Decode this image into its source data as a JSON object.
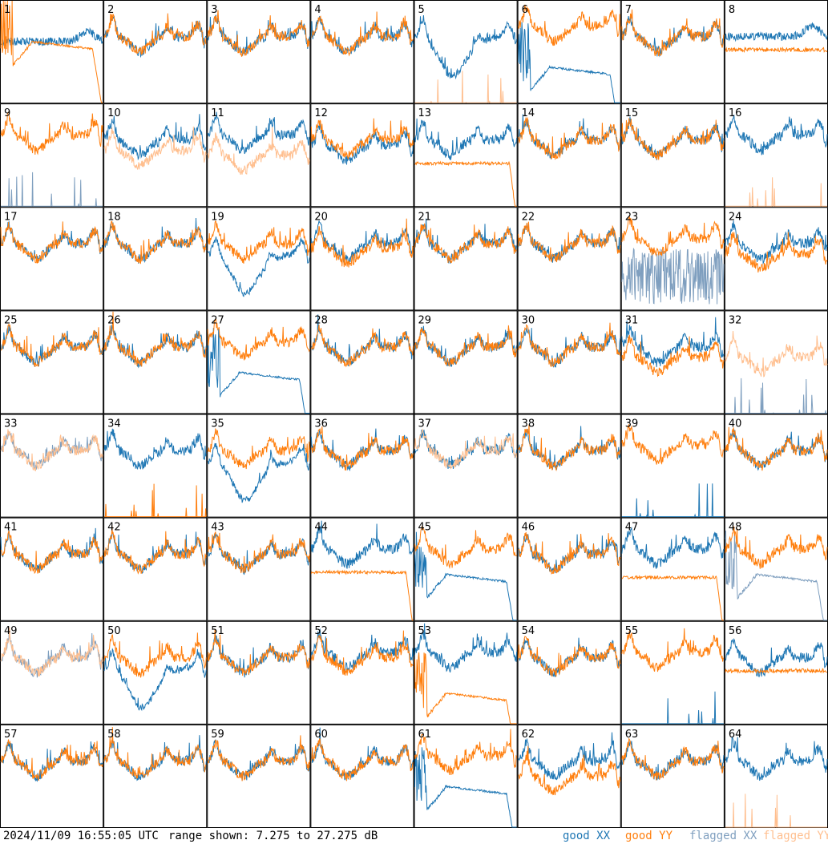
{
  "chart_data": {
    "type": "line",
    "layout": "8x8 grid of small-multiple spectra",
    "units": "dB",
    "ylim": [
      7.275,
      27.275
    ],
    "grid": false,
    "panels": [
      {
        "label": "1",
        "xx": "good",
        "yy": "good",
        "xx_level": 0.55,
        "yy_level": 0.6,
        "xx_profile": "flat-high",
        "yy_profile": "dip-then-drop"
      },
      {
        "label": "2",
        "xx": "good",
        "yy": "good",
        "xx_level": 0.55,
        "yy_level": 0.55,
        "xx_profile": "ripple",
        "yy_profile": "ripple"
      },
      {
        "label": "3",
        "xx": "good",
        "yy": "good",
        "xx_level": 0.55,
        "yy_level": 0.55,
        "xx_profile": "ripple",
        "yy_profile": "ripple"
      },
      {
        "label": "4",
        "xx": "good",
        "yy": "good",
        "xx_level": 0.55,
        "yy_level": 0.55,
        "xx_profile": "ripple",
        "yy_profile": "ripple"
      },
      {
        "label": "5",
        "xx": "good",
        "yy": "flagged-low",
        "xx_level": 0.55,
        "yy_level": 0.0,
        "xx_profile": "dip",
        "yy_profile": "spikes"
      },
      {
        "label": "6",
        "xx": "good",
        "yy": "good",
        "xx_level": 0.35,
        "yy_level": 0.65,
        "xx_profile": "dip-then-drop",
        "yy_profile": "ripple"
      },
      {
        "label": "7",
        "xx": "good",
        "yy": "good",
        "xx_level": 0.55,
        "yy_level": 0.55,
        "xx_profile": "ripple",
        "yy_profile": "ripple"
      },
      {
        "label": "8",
        "xx": "good",
        "yy": "good",
        "xx_level": 0.6,
        "yy_level": 0.5,
        "xx_profile": "flat-high",
        "yy_profile": "flat"
      },
      {
        "label": "9",
        "xx": "flagged-low",
        "yy": "good",
        "xx_level": 0.0,
        "yy_level": 0.6,
        "xx_profile": "spikes",
        "yy_profile": "ripple"
      },
      {
        "label": "10",
        "xx": "good",
        "yy": "flagged",
        "xx_level": 0.55,
        "yy_level": 0.45,
        "xx_profile": "ripple",
        "yy_profile": "ripple"
      },
      {
        "label": "11",
        "xx": "good",
        "yy": "flagged",
        "xx_level": 0.6,
        "yy_level": 0.4,
        "xx_profile": "ripple",
        "yy_profile": "ripple"
      },
      {
        "label": "12",
        "xx": "good",
        "yy": "good",
        "xx_level": 0.5,
        "yy_level": 0.55,
        "xx_profile": "ripple",
        "yy_profile": "ripple"
      },
      {
        "label": "13",
        "xx": "good",
        "yy": "good",
        "xx_level": 0.55,
        "yy_level": 0.45,
        "xx_profile": "ripple",
        "yy_profile": "flat-drop"
      },
      {
        "label": "14",
        "xx": "good",
        "yy": "good",
        "xx_level": 0.55,
        "yy_level": 0.55,
        "xx_profile": "ripple",
        "yy_profile": "ripple"
      },
      {
        "label": "15",
        "xx": "good",
        "yy": "good",
        "xx_level": 0.55,
        "yy_level": 0.55,
        "xx_profile": "ripple",
        "yy_profile": "ripple"
      },
      {
        "label": "16",
        "xx": "good",
        "yy": "flagged-low",
        "xx_level": 0.6,
        "yy_level": 0.0,
        "xx_profile": "ripple",
        "yy_profile": "spikes"
      },
      {
        "label": "17",
        "xx": "good",
        "yy": "good",
        "xx_level": 0.55,
        "yy_level": 0.55,
        "xx_profile": "ripple",
        "yy_profile": "ripple"
      },
      {
        "label": "18",
        "xx": "good",
        "yy": "good",
        "xx_level": 0.55,
        "yy_level": 0.55,
        "xx_profile": "ripple",
        "yy_profile": "ripple"
      },
      {
        "label": "19",
        "xx": "good",
        "yy": "good",
        "xx_level": 0.45,
        "yy_level": 0.55,
        "xx_profile": "dip",
        "yy_profile": "ripple"
      },
      {
        "label": "20",
        "xx": "good",
        "yy": "good",
        "xx_level": 0.55,
        "yy_level": 0.5,
        "xx_profile": "ripple",
        "yy_profile": "ripple"
      },
      {
        "label": "21",
        "xx": "good",
        "yy": "good",
        "xx_level": 0.55,
        "yy_level": 0.55,
        "xx_profile": "ripple",
        "yy_profile": "ripple"
      },
      {
        "label": "22",
        "xx": "good",
        "yy": "good",
        "xx_level": 0.55,
        "yy_level": 0.55,
        "xx_profile": "ripple",
        "yy_profile": "ripple"
      },
      {
        "label": "23",
        "xx": "flagged-noise",
        "yy": "good",
        "xx_level": 0.25,
        "yy_level": 0.6,
        "xx_profile": "noise",
        "yy_profile": "ripple"
      },
      {
        "label": "24",
        "xx": "good",
        "yy": "good",
        "xx_level": 0.55,
        "yy_level": 0.45,
        "xx_profile": "ripple",
        "yy_profile": "ripple"
      },
      {
        "label": "25",
        "xx": "good",
        "yy": "good",
        "xx_level": 0.55,
        "yy_level": 0.55,
        "xx_profile": "ripple",
        "yy_profile": "ripple"
      },
      {
        "label": "26",
        "xx": "good",
        "yy": "good",
        "xx_level": 0.55,
        "yy_level": 0.55,
        "xx_profile": "ripple",
        "yy_profile": "ripple"
      },
      {
        "label": "27",
        "xx": "good",
        "yy": "good",
        "xx_level": 0.4,
        "yy_level": 0.6,
        "xx_profile": "dip-then-drop",
        "yy_profile": "ripple"
      },
      {
        "label": "28",
        "xx": "good",
        "yy": "good",
        "xx_level": 0.55,
        "yy_level": 0.55,
        "xx_profile": "ripple",
        "yy_profile": "ripple"
      },
      {
        "label": "29",
        "xx": "good",
        "yy": "good",
        "xx_level": 0.55,
        "yy_level": 0.55,
        "xx_profile": "ripple",
        "yy_profile": "ripple"
      },
      {
        "label": "30",
        "xx": "good",
        "yy": "good",
        "xx_level": 0.55,
        "yy_level": 0.55,
        "xx_profile": "ripple",
        "yy_profile": "ripple"
      },
      {
        "label": "31",
        "xx": "good",
        "yy": "good",
        "xx_level": 0.55,
        "yy_level": 0.45,
        "xx_profile": "ripple",
        "yy_profile": "ripple"
      },
      {
        "label": "32",
        "xx": "flagged-low",
        "yy": "flagged",
        "xx_level": 0.0,
        "yy_level": 0.45,
        "xx_profile": "spikes",
        "yy_profile": "ripple"
      },
      {
        "label": "33",
        "xx": "flagged",
        "yy": "flagged",
        "xx_level": 0.55,
        "yy_level": 0.55,
        "xx_profile": "ripple",
        "yy_profile": "ripple"
      },
      {
        "label": "34",
        "xx": "good",
        "yy": "good-low",
        "xx_level": 0.55,
        "yy_level": 0.0,
        "xx_profile": "ripple",
        "yy_profile": "spikes"
      },
      {
        "label": "35",
        "xx": "good",
        "yy": "good",
        "xx_level": 0.45,
        "yy_level": 0.55,
        "xx_profile": "dip",
        "yy_profile": "ripple"
      },
      {
        "label": "36",
        "xx": "good",
        "yy": "good",
        "xx_level": 0.55,
        "yy_level": 0.55,
        "xx_profile": "ripple",
        "yy_profile": "ripple"
      },
      {
        "label": "37",
        "xx": "good",
        "yy": "flagged",
        "xx_level": 0.55,
        "yy_level": 0.55,
        "xx_profile": "ripple",
        "yy_profile": "ripple"
      },
      {
        "label": "38",
        "xx": "good",
        "yy": "good",
        "xx_level": 0.55,
        "yy_level": 0.55,
        "xx_profile": "ripple",
        "yy_profile": "ripple"
      },
      {
        "label": "39",
        "xx": "good-low",
        "yy": "good",
        "xx_level": 0.0,
        "yy_level": 0.6,
        "xx_profile": "spikes",
        "yy_profile": "ripple"
      },
      {
        "label": "40",
        "xx": "good",
        "yy": "good",
        "xx_level": 0.55,
        "yy_level": 0.55,
        "xx_profile": "ripple",
        "yy_profile": "ripple"
      },
      {
        "label": "41",
        "xx": "good",
        "yy": "good",
        "xx_level": 0.55,
        "yy_level": 0.55,
        "xx_profile": "ripple",
        "yy_profile": "ripple"
      },
      {
        "label": "42",
        "xx": "good",
        "yy": "good",
        "xx_level": 0.55,
        "yy_level": 0.55,
        "xx_profile": "ripple",
        "yy_profile": "ripple"
      },
      {
        "label": "43",
        "xx": "good",
        "yy": "good",
        "xx_level": 0.55,
        "yy_level": 0.55,
        "xx_profile": "ripple",
        "yy_profile": "ripple"
      },
      {
        "label": "44",
        "xx": "good",
        "yy": "good",
        "xx_level": 0.6,
        "yy_level": 0.5,
        "xx_profile": "ripple",
        "yy_profile": "flat-drop"
      },
      {
        "label": "45",
        "xx": "good",
        "yy": "good",
        "xx_level": 0.45,
        "yy_level": 0.6,
        "xx_profile": "dip-then-drop",
        "yy_profile": "ripple"
      },
      {
        "label": "46",
        "xx": "good",
        "yy": "good",
        "xx_level": 0.55,
        "yy_level": 0.55,
        "xx_profile": "ripple",
        "yy_profile": "ripple"
      },
      {
        "label": "47",
        "xx": "good",
        "yy": "good",
        "xx_level": 0.6,
        "yy_level": 0.45,
        "xx_profile": "ripple",
        "yy_profile": "flat-drop"
      },
      {
        "label": "48",
        "xx": "flagged",
        "yy": "good",
        "xx_level": 0.45,
        "yy_level": 0.6,
        "xx_profile": "dip-then-drop",
        "yy_profile": "ripple"
      },
      {
        "label": "49",
        "xx": "flagged",
        "yy": "flagged",
        "xx_level": 0.55,
        "yy_level": 0.55,
        "xx_profile": "ripple",
        "yy_profile": "ripple"
      },
      {
        "label": "50",
        "xx": "good",
        "yy": "good",
        "xx_level": 0.45,
        "yy_level": 0.55,
        "xx_profile": "dip",
        "yy_profile": "ripple"
      },
      {
        "label": "51",
        "xx": "good",
        "yy": "good",
        "xx_level": 0.55,
        "yy_level": 0.55,
        "xx_profile": "ripple",
        "yy_profile": "ripple"
      },
      {
        "label": "52",
        "xx": "good",
        "yy": "good",
        "xx_level": 0.6,
        "yy_level": 0.55,
        "xx_profile": "ripple",
        "yy_profile": "ripple"
      },
      {
        "label": "53",
        "xx": "good",
        "yy": "good",
        "xx_level": 0.6,
        "yy_level": 0.3,
        "xx_profile": "ripple",
        "yy_profile": "dip-then-drop"
      },
      {
        "label": "54",
        "xx": "good",
        "yy": "good",
        "xx_level": 0.55,
        "yy_level": 0.55,
        "xx_profile": "ripple",
        "yy_profile": "ripple"
      },
      {
        "label": "55",
        "xx": "good-low",
        "yy": "good",
        "xx_level": 0.0,
        "yy_level": 0.6,
        "xx_profile": "spikes",
        "yy_profile": "ripple"
      },
      {
        "label": "56",
        "xx": "good",
        "yy": "good",
        "xx_level": 0.55,
        "yy_level": 0.5,
        "xx_profile": "ripple",
        "yy_profile": "flat"
      },
      {
        "label": "57",
        "xx": "good",
        "yy": "good",
        "xx_level": 0.55,
        "yy_level": 0.55,
        "xx_profile": "ripple",
        "yy_profile": "ripple"
      },
      {
        "label": "58",
        "xx": "good",
        "yy": "good",
        "xx_level": 0.55,
        "yy_level": 0.55,
        "xx_profile": "ripple",
        "yy_profile": "ripple"
      },
      {
        "label": "59",
        "xx": "good",
        "yy": "good",
        "xx_level": 0.55,
        "yy_level": 0.55,
        "xx_profile": "ripple",
        "yy_profile": "ripple"
      },
      {
        "label": "60",
        "xx": "good",
        "yy": "good",
        "xx_level": 0.55,
        "yy_level": 0.55,
        "xx_profile": "ripple",
        "yy_profile": "ripple"
      },
      {
        "label": "61",
        "xx": "good",
        "yy": "good",
        "xx_level": 0.4,
        "yy_level": 0.6,
        "xx_profile": "dip-then-drop",
        "yy_profile": "ripple"
      },
      {
        "label": "62",
        "xx": "good",
        "yy": "good",
        "xx_level": 0.55,
        "yy_level": 0.4,
        "xx_profile": "ripple",
        "yy_profile": "ripple"
      },
      {
        "label": "63",
        "xx": "good",
        "yy": "good",
        "xx_level": 0.55,
        "yy_level": 0.55,
        "xx_profile": "ripple",
        "yy_profile": "ripple"
      },
      {
        "label": "64",
        "xx": "good",
        "yy": "flagged-low",
        "xx_level": 0.55,
        "yy_level": 0.0,
        "xx_profile": "ripple",
        "yy_profile": "spikes"
      }
    ]
  },
  "footer": {
    "timestamp": "2024/11/09 16:55:05 UTC",
    "range_text": "range shown: 7.275 to 27.275 dB"
  },
  "legend": {
    "good_xx": "good XX",
    "good_yy": "good YY",
    "flagged_xx": "flagged XX",
    "flagged_yy": "flagged YY"
  },
  "colors": {
    "good_xx": "#1f77b4",
    "good_yy": "#ff7f0e",
    "flagged_xx": "#7f9fbf",
    "flagged_yy": "#ffbf8f",
    "grid_line": "#000000",
    "background": "#ffffff"
  }
}
